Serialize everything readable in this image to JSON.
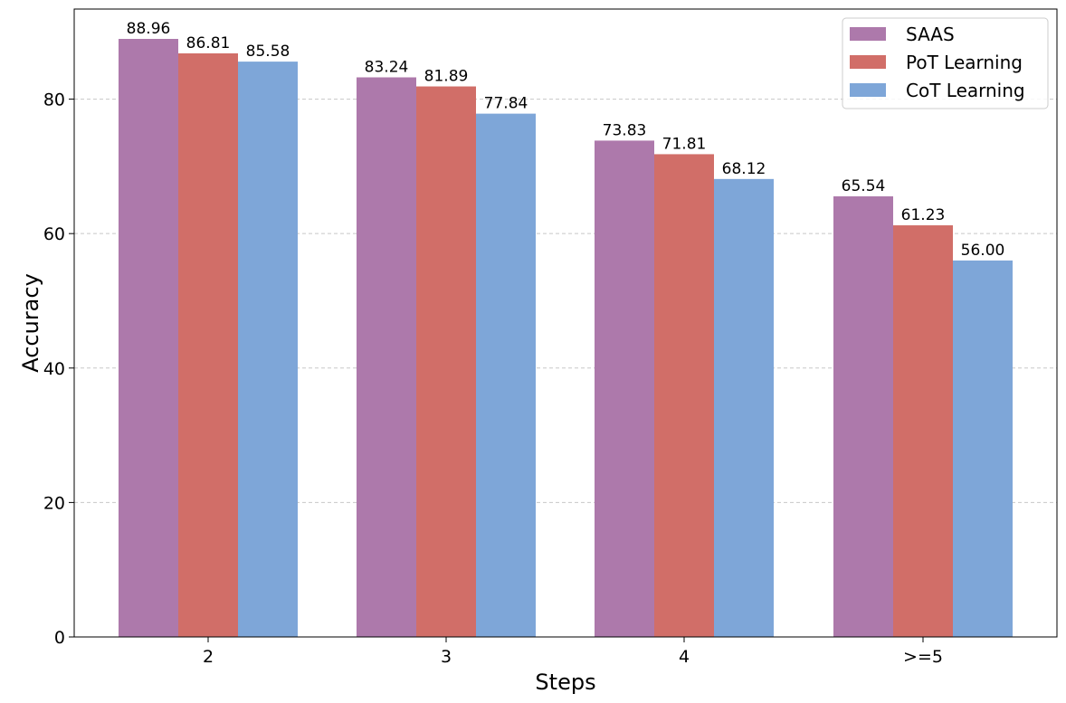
{
  "chart_data": {
    "type": "bar",
    "categories": [
      "2",
      "3",
      "4",
      ">=5"
    ],
    "series": [
      {
        "name": "SAAS",
        "color": "#ad79ab",
        "values": [
          88.96,
          83.24,
          73.83,
          65.54
        ]
      },
      {
        "name": "PoT Learning",
        "color": "#d16e68",
        "values": [
          86.81,
          81.89,
          71.81,
          61.23
        ]
      },
      {
        "name": "CoT Learning",
        "color": "#7ea6d8",
        "values": [
          85.58,
          77.84,
          68.12,
          56.0
        ]
      }
    ],
    "xlabel": "Steps",
    "ylabel": "Accuracy",
    "ylim": [
      0,
      93.4
    ],
    "yticks": [
      0,
      20,
      40,
      60,
      80
    ],
    "grid": "y-dashed",
    "legend": "top-right"
  }
}
